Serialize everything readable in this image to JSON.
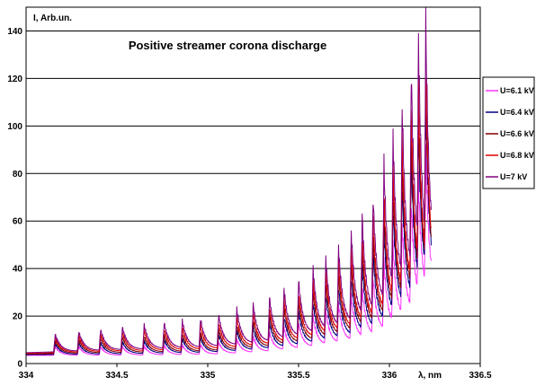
{
  "chart_data": {
    "type": "line",
    "title": "Positive streamer corona discharge",
    "xlabel": "λ, nm",
    "ylabel": "I, Arb.un.",
    "xlim": [
      334,
      336.5
    ],
    "ylim": [
      0,
      150
    ],
    "x_ticks": [
      "334",
      "334.5",
      "335",
      "335.5",
      "336",
      "336.5"
    ],
    "y_ticks": [
      "0",
      "20",
      "40",
      "60",
      "80",
      "100",
      "120",
      "140"
    ],
    "grid": "horizontal",
    "legend_position": "right",
    "band_heads": [
      334.16,
      334.29,
      334.41,
      334.53,
      334.65,
      334.76,
      334.86,
      334.96,
      335.06,
      335.16,
      335.25,
      335.34,
      335.42,
      335.5,
      335.58,
      335.65,
      335.72,
      335.79,
      335.85,
      335.91,
      335.97,
      336.02,
      336.07,
      336.12,
      336.16,
      336.2
    ],
    "series": [
      {
        "name": "U=6.1 kV",
        "color": "#ff33ff",
        "x": [
          334,
          334.5,
          335,
          335.3,
          335.5,
          335.7,
          335.8,
          335.9,
          336,
          336.1,
          336.17,
          336.23
        ],
        "values": [
          7,
          7,
          8,
          12,
          17,
          24,
          29,
          35,
          46,
          64,
          80,
          98
        ]
      },
      {
        "name": "U=6.4 kV",
        "color": "#000080",
        "x": [
          334,
          334.5,
          335,
          335.3,
          335.5,
          335.7,
          335.8,
          335.9,
          336,
          336.1,
          336.17,
          336.23
        ],
        "values": [
          8,
          9,
          11,
          16,
          22,
          31,
          37,
          45,
          60,
          82,
          100,
          118
        ]
      },
      {
        "name": "U=6.6 kV",
        "color": "#800000",
        "x": [
          334,
          334.5,
          335,
          335.3,
          335.5,
          335.7,
          335.8,
          335.9,
          336,
          336.1,
          336.17,
          336.23
        ],
        "values": [
          9,
          11,
          13,
          19,
          26,
          36,
          43,
          52,
          68,
          92,
          110,
          125
        ]
      },
      {
        "name": "U=6.8 kV",
        "color": "#dd0000",
        "x": [
          334,
          334.5,
          335,
          335.3,
          335.5,
          335.7,
          335.8,
          335.9,
          336,
          336.1,
          336.17,
          336.23
        ],
        "values": [
          10,
          13,
          16,
          22,
          30,
          41,
          48,
          58,
          76,
          100,
          118,
          130
        ]
      },
      {
        "name": "U=7 kV",
        "color": "#800080",
        "x": [
          334,
          334.5,
          335,
          335.3,
          335.5,
          335.7,
          335.8,
          335.9,
          336,
          336.1,
          336.17,
          336.23
        ],
        "values": [
          11,
          15,
          19,
          26,
          35,
          47,
          56,
          68,
          90,
          118,
          140,
          150
        ]
      }
    ]
  }
}
